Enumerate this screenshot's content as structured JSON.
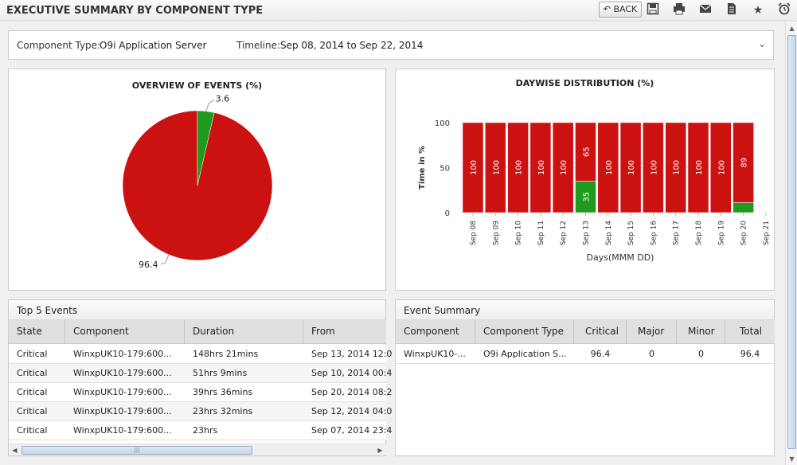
{
  "header": {
    "title": "EXECUTIVE SUMMARY BY COMPONENT TYPE",
    "back_label": "BACK",
    "icons": [
      "arrow-left-icon",
      "save-icon",
      "print-icon",
      "email-icon",
      "document-icon",
      "star-icon",
      "alarm-clock-icon"
    ]
  },
  "filter": {
    "component_type_label": "Component Type:",
    "component_type_value": "O9i Application Server",
    "timeline_label": "Timeline:",
    "timeline_value": "Sep 08, 2014 to Sep 22, 2014"
  },
  "colors": {
    "critical": "#cc1111",
    "ok": "#1f9a1f",
    "grid_header": "#e0e0e0"
  },
  "chart_data": [
    {
      "type": "pie",
      "title": "OVERVIEW OF EVENTS (%)",
      "labels": [
        "",
        ""
      ],
      "values": [
        96.4,
        3.6
      ],
      "colors": [
        "#cc1111",
        "#1f9a1f"
      ],
      "data_labels": [
        "96.4",
        "3.6"
      ]
    },
    {
      "type": "bar",
      "stacked": true,
      "title": "DAYWISE DISTRIBUTION (%)",
      "xlabel": "Days(MMM DD)",
      "ylabel": "Time in %",
      "ylim": [
        0,
        100
      ],
      "yticks": [
        "0",
        "50",
        "100"
      ],
      "categories": [
        "Sep 08",
        "Sep 09",
        "Sep 10",
        "Sep 11",
        "Sep 12",
        "Sep 13",
        "Sep 14",
        "Sep 15",
        "Sep 16",
        "Sep 17",
        "Sep 18",
        "Sep 19",
        "Sep 20",
        "Sep 21"
      ],
      "series": [
        {
          "color": "#1f9a1f",
          "values": [
            0,
            0,
            0,
            0,
            0,
            35,
            0,
            0,
            0,
            0,
            0,
            0,
            11,
            0
          ]
        },
        {
          "color": "#cc1111",
          "values": [
            100,
            100,
            100,
            100,
            100,
            65,
            100,
            100,
            100,
            100,
            100,
            100,
            89,
            0
          ]
        }
      ],
      "data_labels": {
        "critical": [
          "100",
          "100",
          "100",
          "100",
          "100",
          "65",
          "100",
          "100",
          "100",
          "100",
          "100",
          "100",
          "89",
          ""
        ],
        "ok": [
          "",
          "",
          "",
          "",
          "",
          "35",
          "",
          "",
          "",
          "",
          "",
          "",
          "",
          ""
        ]
      },
      "grid": true
    }
  ],
  "top_events": {
    "title": "Top 5 Events",
    "columns": [
      "State",
      "Component",
      "Duration",
      "From"
    ],
    "rows": [
      [
        "Critical",
        "WinxpUK10-179:600...",
        "148hrs 21mins",
        "Sep 13, 2014 12:0"
      ],
      [
        "Critical",
        "WinxpUK10-179:600...",
        "51hrs 9mins",
        "Sep 10, 2014 00:4"
      ],
      [
        "Critical",
        "WinxpUK10-179:600...",
        "39hrs 36mins",
        "Sep 20, 2014 08:2"
      ],
      [
        "Critical",
        "WinxpUK10-179:600...",
        "23hrs 32mins",
        "Sep 12, 2014 04:0"
      ],
      [
        "Critical",
        "WinxpUK10-179:600...",
        "23hrs",
        "Sep 07, 2014 23:4"
      ]
    ]
  },
  "event_summary": {
    "title": "Event Summary",
    "columns": [
      "Component",
      "Component Type",
      "Critical",
      "Major",
      "Minor",
      "Total"
    ],
    "rows": [
      [
        "WinxpUK10-...",
        "O9i Application S...",
        "96.4",
        "0",
        "0",
        "96.4"
      ]
    ]
  }
}
